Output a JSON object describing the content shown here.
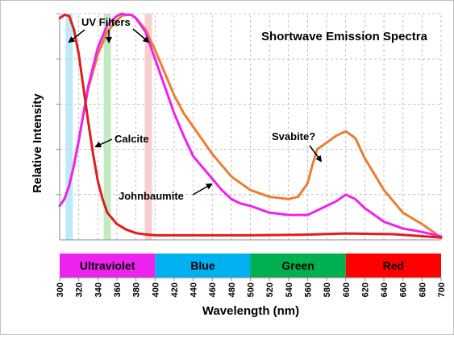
{
  "chart_data": {
    "type": "line",
    "title": "Shortwave Emission Spectra",
    "xlabel": "Wavelength (nm)",
    "ylabel": "Relative Intensity",
    "xlim": [
      300,
      700
    ],
    "ylim": [
      0,
      1
    ],
    "x_ticks": [
      "300",
      "320",
      "340",
      "360",
      "380",
      "400",
      "420",
      "440",
      "460",
      "480",
      "500",
      "520",
      "540",
      "560",
      "580",
      "600",
      "620",
      "640",
      "660",
      "680",
      "700"
    ],
    "grid": true,
    "y_tick_labels_shown": false,
    "colors": {
      "calcite": "#e31b1b",
      "johnbaumite": "#ee22ee",
      "svabite": "#ed7d31",
      "grid": "#b0b0b0"
    },
    "series": [
      {
        "name": "Calcite",
        "color": "#e31b1b",
        "x": [
          300,
          305,
          310,
          315,
          320,
          325,
          330,
          335,
          340,
          345,
          350,
          360,
          370,
          380,
          390,
          400,
          450,
          500,
          550,
          600,
          650,
          700
        ],
        "y": [
          0.98,
          0.995,
          0.99,
          0.93,
          0.82,
          0.67,
          0.52,
          0.38,
          0.26,
          0.18,
          0.12,
          0.07,
          0.045,
          0.03,
          0.024,
          0.02,
          0.02,
          0.02,
          0.022,
          0.028,
          0.025,
          0.01
        ]
      },
      {
        "name": "Johnbaumite",
        "color": "#ee22ee",
        "x": [
          300,
          305,
          310,
          315,
          320,
          325,
          330,
          340,
          350,
          360,
          365,
          370,
          375,
          380,
          390,
          400,
          410,
          420,
          430,
          440,
          450,
          460,
          470,
          480,
          490,
          500,
          520,
          540,
          560,
          580,
          590,
          600,
          610,
          620,
          640,
          660,
          680,
          700
        ],
        "y": [
          0.15,
          0.18,
          0.24,
          0.33,
          0.44,
          0.56,
          0.68,
          0.85,
          0.95,
          0.99,
          1.0,
          0.995,
          0.995,
          0.98,
          0.92,
          0.8,
          0.68,
          0.56,
          0.46,
          0.37,
          0.32,
          0.27,
          0.22,
          0.18,
          0.16,
          0.15,
          0.12,
          0.11,
          0.11,
          0.15,
          0.17,
          0.2,
          0.18,
          0.14,
          0.08,
          0.05,
          0.035,
          0.015
        ]
      },
      {
        "name": "Svabite?",
        "color": "#ed7d31",
        "x": [
          300,
          305,
          310,
          315,
          320,
          325,
          330,
          340,
          350,
          360,
          365,
          370,
          375,
          380,
          390,
          400,
          410,
          420,
          430,
          440,
          450,
          460,
          470,
          480,
          490,
          500,
          520,
          540,
          550,
          560,
          565,
          570,
          580,
          590,
          600,
          610,
          620,
          640,
          660,
          680,
          700
        ],
        "y": [
          0.15,
          0.18,
          0.24,
          0.33,
          0.44,
          0.56,
          0.67,
          0.82,
          0.92,
          0.97,
          0.99,
          0.995,
          0.995,
          0.98,
          0.93,
          0.84,
          0.74,
          0.64,
          0.56,
          0.5,
          0.44,
          0.38,
          0.33,
          0.28,
          0.25,
          0.22,
          0.19,
          0.18,
          0.19,
          0.25,
          0.33,
          0.4,
          0.43,
          0.46,
          0.48,
          0.45,
          0.36,
          0.22,
          0.12,
          0.07,
          0.01
        ]
      }
    ],
    "filters": [
      {
        "x": 310,
        "color": "#b3e5f5"
      },
      {
        "x": 350,
        "color": "#b7e6b7"
      },
      {
        "x": 393,
        "color": "#f8c6c6"
      }
    ],
    "annotations": {
      "uv_filters": "UV Filters",
      "calcite": "Calcite",
      "johnbaumite": "Johnbaumite",
      "svabite": "Svabite?"
    },
    "bands": [
      {
        "label": "Ultraviolet",
        "from": 300,
        "to": 400,
        "color": "#ee22ee"
      },
      {
        "label": "Blue",
        "from": 400,
        "to": 500,
        "color": "#00b0f0"
      },
      {
        "label": "Green",
        "from": 500,
        "to": 600,
        "color": "#00b050"
      },
      {
        "label": "Red",
        "from": 600,
        "to": 700,
        "color": "#ff0000"
      }
    ]
  }
}
